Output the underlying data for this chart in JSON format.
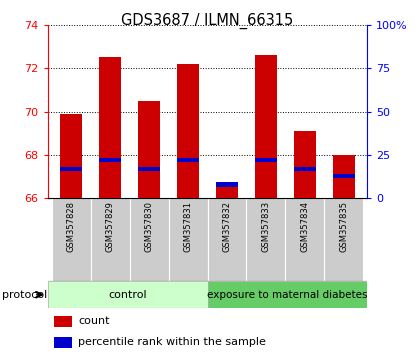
{
  "title": "GDS3687 / ILMN_66315",
  "samples": [
    "GSM357828",
    "GSM357829",
    "GSM357830",
    "GSM357831",
    "GSM357832",
    "GSM357833",
    "GSM357834",
    "GSM357835"
  ],
  "count_values": [
    69.9,
    72.5,
    70.5,
    72.2,
    66.7,
    72.6,
    69.1,
    68.0
  ],
  "percentile_values": [
    17,
    22,
    17,
    22,
    8,
    22,
    17,
    13
  ],
  "ylim_left": [
    66,
    74
  ],
  "ylim_right": [
    0,
    100
  ],
  "yticks_left": [
    66,
    68,
    70,
    72,
    74
  ],
  "yticks_right": [
    0,
    25,
    50,
    75,
    100
  ],
  "ytick_labels_right": [
    "0",
    "25",
    "50",
    "75",
    "100%"
  ],
  "bar_color": "#cc0000",
  "percentile_color": "#0000cc",
  "control_label": "control",
  "diabetes_label": "exposure to maternal diabetes",
  "protocol_label": "protocol",
  "legend_count": "count",
  "legend_percentile": "percentile rank within the sample",
  "control_bg": "#ccffcc",
  "diabetes_bg": "#66cc66",
  "xlabel_bg": "#cccccc",
  "bar_width": 0.55,
  "base_value": 66,
  "n_control": 4,
  "n_diabetes": 4
}
